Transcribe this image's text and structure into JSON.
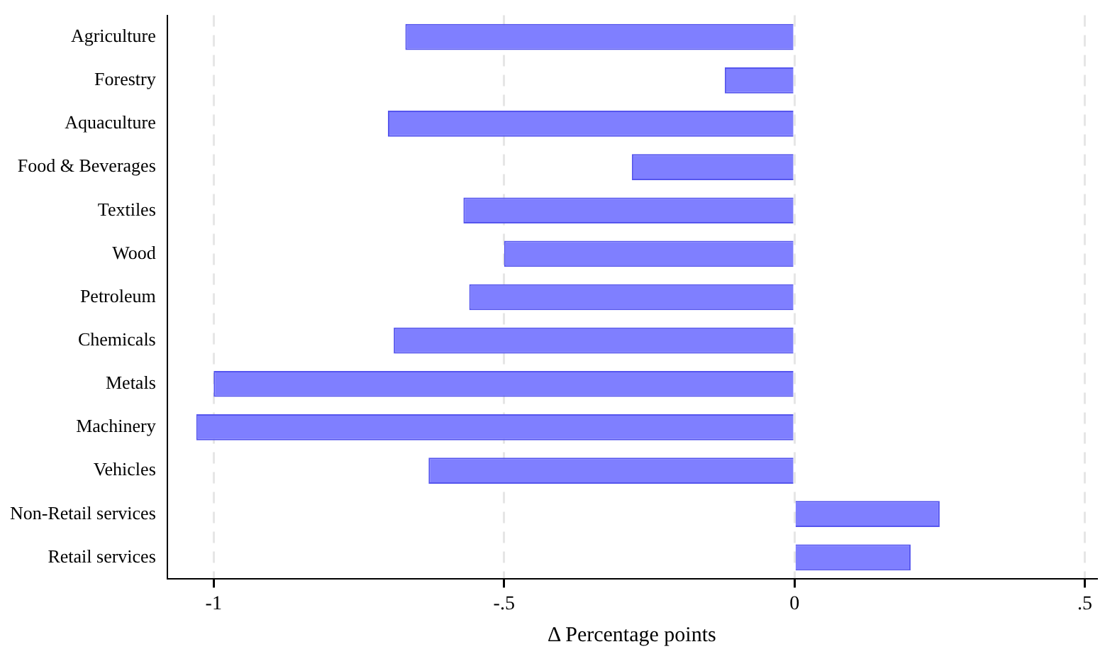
{
  "chart_data": {
    "type": "bar",
    "orientation": "horizontal",
    "xlabel": "Δ Percentage points",
    "categories": [
      "Agriculture",
      "Forestry",
      "Aquaculture",
      "Food & Beverages",
      "Textiles",
      "Wood",
      "Petroleum",
      "Chemicals",
      "Metals",
      "Machinery",
      "Vehicles",
      "Non-Retail services",
      "Retail services"
    ],
    "values": [
      -0.67,
      -0.12,
      -0.7,
      -0.28,
      -0.57,
      -0.5,
      -0.56,
      -0.69,
      -1.0,
      -1.03,
      -0.63,
      0.25,
      0.2
    ],
    "color": "#7f7fff",
    "xlim": [
      -1.08,
      0.52
    ],
    "xticks": [
      {
        "value": -1,
        "label": "-1"
      },
      {
        "value": -0.5,
        "label": "-.5"
      },
      0,
      {
        "value": 0.5,
        "label": ".5"
      }
    ],
    "grid": "x",
    "legend": false
  }
}
